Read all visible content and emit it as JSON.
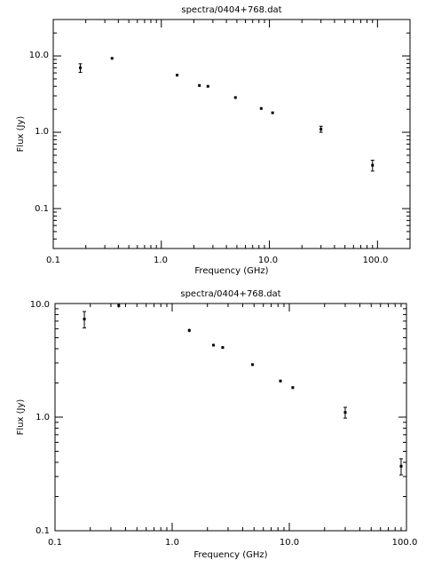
{
  "chart_data": [
    {
      "type": "scatter",
      "title": "spectra/0404+768.dat",
      "xlabel": "Frequency (GHz)",
      "ylabel": "Flux (Jy)",
      "xscale": "log",
      "yscale": "log",
      "xlim": [
        0.1,
        200
      ],
      "ylim": [
        0.03,
        30
      ],
      "xtick_labels": [
        "0.1",
        "1.0",
        "10.0",
        "100.0"
      ],
      "ytick_labels": [
        "0.1",
        "1.0",
        "10.0"
      ],
      "grid": false,
      "points": [
        {
          "x": 0.178,
          "y": 7.0,
          "yerr": 0.9
        },
        {
          "x": 0.35,
          "y": 9.3,
          "yerr": 0.2
        },
        {
          "x": 1.4,
          "y": 5.6,
          "yerr": 0.1
        },
        {
          "x": 2.25,
          "y": 4.1,
          "yerr": 0.1
        },
        {
          "x": 2.7,
          "y": 4.0,
          "yerr": 0.1
        },
        {
          "x": 4.85,
          "y": 2.85,
          "yerr": 0.05
        },
        {
          "x": 8.4,
          "y": 2.05,
          "yerr": 0.05
        },
        {
          "x": 10.7,
          "y": 1.8,
          "yerr": 0.05
        },
        {
          "x": 30.0,
          "y": 1.1,
          "yerr": 0.1
        },
        {
          "x": 90.0,
          "y": 0.37,
          "yerr": 0.06
        }
      ]
    },
    {
      "type": "scatter",
      "title": "spectra/0404+768.dat",
      "xlabel": "Frequency (GHz)",
      "ylabel": "Flux (Jy)",
      "xscale": "log",
      "yscale": "log",
      "xlim": [
        0.1,
        100
      ],
      "ylim": [
        0.1,
        10
      ],
      "xtick_labels": [
        "0.1",
        "1.0",
        "10.0",
        "100.0"
      ],
      "ytick_labels": [
        "0.1",
        "1.0",
        "10.0"
      ],
      "grid": false,
      "points": [
        {
          "x": 0.178,
          "y": 7.3,
          "yerr": 1.2
        },
        {
          "x": 0.35,
          "y": 9.6,
          "yerr": 0.4
        },
        {
          "x": 1.4,
          "y": 5.8,
          "yerr": 0.2
        },
        {
          "x": 2.25,
          "y": 4.3,
          "yerr": 0.1
        },
        {
          "x": 2.7,
          "y": 4.1,
          "yerr": 0.1
        },
        {
          "x": 4.85,
          "y": 2.9,
          "yerr": 0.05
        },
        {
          "x": 8.4,
          "y": 2.08,
          "yerr": 0.06
        },
        {
          "x": 10.7,
          "y": 1.82,
          "yerr": 0.05
        },
        {
          "x": 30.0,
          "y": 1.1,
          "yerr": 0.12
        },
        {
          "x": 90.0,
          "y": 0.37,
          "yerr": 0.06
        }
      ]
    }
  ]
}
